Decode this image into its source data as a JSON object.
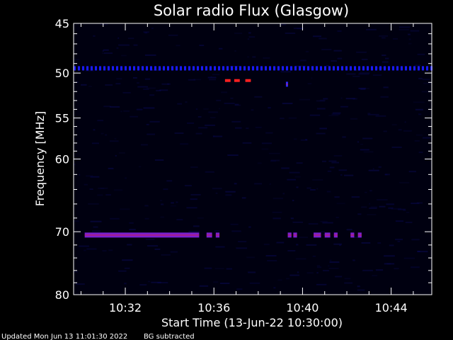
{
  "chart_data": {
    "type": "heatmap",
    "title": "Solar radio Flux (Glasgow)",
    "xlabel": "Start Time (13-Jun-22 10:30:00)",
    "ylabel": "Frequency [MHz]",
    "x_range_minutes": [
      "10:29:40",
      "10:45:50"
    ],
    "y_range_mhz": [
      45,
      80
    ],
    "y_scale": "log",
    "x_ticks": [
      "10:32",
      "10:36",
      "10:40",
      "10:44"
    ],
    "y_ticks": [
      45,
      50,
      55,
      60,
      70,
      80
    ],
    "background_color": "#000000",
    "features": [
      {
        "kind": "band",
        "freq_mhz": 49.5,
        "start": "10:29:40",
        "end": "10:45:50",
        "intensity": "low",
        "color": "#1a1aff"
      },
      {
        "kind": "band",
        "freq_mhz": 70.5,
        "start": "10:30:10",
        "end": "10:35:20",
        "intensity": "medium",
        "color": "#7a1fd0"
      },
      {
        "kind": "burst",
        "freq_mhz": 70.5,
        "start": "10:35:40",
        "end": "10:35:55",
        "intensity": "medium",
        "color": "#7a1fd0"
      },
      {
        "kind": "burst",
        "freq_mhz": 70.5,
        "start": "10:36:05",
        "end": "10:36:15",
        "intensity": "medium",
        "color": "#7a1fd0"
      },
      {
        "kind": "burst",
        "freq_mhz": 70.5,
        "start": "10:39:20",
        "end": "10:39:30",
        "intensity": "medium",
        "color": "#7a1fd0"
      },
      {
        "kind": "burst",
        "freq_mhz": 70.5,
        "start": "10:39:35",
        "end": "10:39:45",
        "intensity": "medium",
        "color": "#7a1fd0"
      },
      {
        "kind": "burst",
        "freq_mhz": 70.5,
        "start": "10:40:30",
        "end": "10:40:50",
        "intensity": "medium",
        "color": "#7a1fd0"
      },
      {
        "kind": "burst",
        "freq_mhz": 70.5,
        "start": "10:41:00",
        "end": "10:41:15",
        "intensity": "medium",
        "color": "#7a1fd0"
      },
      {
        "kind": "burst",
        "freq_mhz": 70.5,
        "start": "10:41:25",
        "end": "10:41:35",
        "intensity": "medium",
        "color": "#7a1fd0"
      },
      {
        "kind": "burst",
        "freq_mhz": 70.5,
        "start": "10:42:10",
        "end": "10:42:20",
        "intensity": "medium",
        "color": "#7a1fd0"
      },
      {
        "kind": "burst",
        "freq_mhz": 70.5,
        "start": "10:42:30",
        "end": "10:42:40",
        "intensity": "medium",
        "color": "#7a1fd0"
      },
      {
        "kind": "burst",
        "freq_mhz": 50.8,
        "start": "10:36:30",
        "end": "10:36:45",
        "intensity": "high",
        "color": "#ff2020"
      },
      {
        "kind": "burst",
        "freq_mhz": 50.8,
        "start": "10:36:55",
        "end": "10:37:10",
        "intensity": "high",
        "color": "#ff2020"
      },
      {
        "kind": "burst",
        "freq_mhz": 50.8,
        "start": "10:37:25",
        "end": "10:37:40",
        "intensity": "high",
        "color": "#ff2020"
      },
      {
        "kind": "burst",
        "freq_mhz": 51.2,
        "start": "10:39:15",
        "end": "10:39:20",
        "intensity": "low",
        "color": "#2b2bff"
      }
    ]
  },
  "footer": {
    "updated": "Updated Mon Jun 13 11:01:30 2022",
    "bg_note": "BG subtracted"
  }
}
